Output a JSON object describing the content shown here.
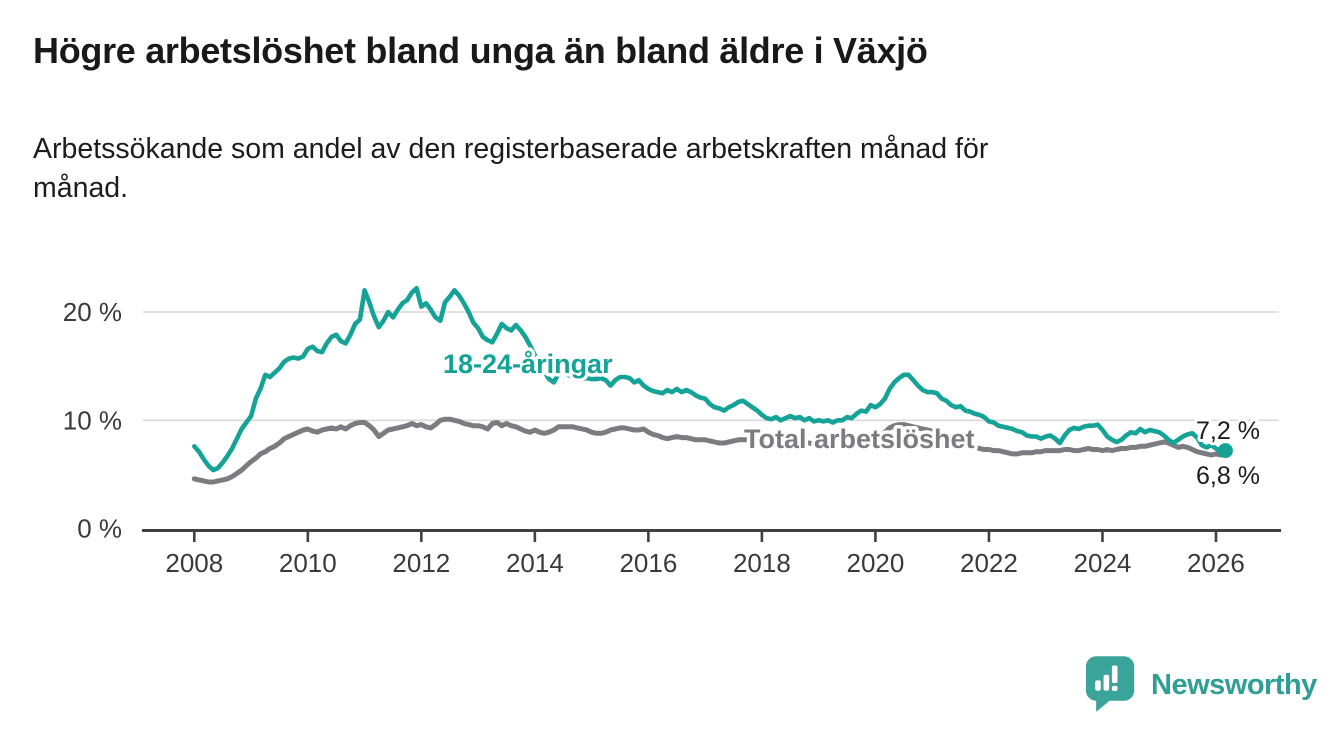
{
  "header": {
    "title": "Högre arbetslöshet bland unga än bland äldre i Växjö",
    "subtitle_lines": [
      "Arbetssökande som andel av den registerbaserade arbetskraften månad för",
      "månad."
    ]
  },
  "footer": {
    "brand": "Newsworthy",
    "logo_icon": "speech-bubble-bar-chart"
  },
  "colors": {
    "youth_line": "#14a396",
    "total_line": "#7c7b81",
    "axis": "#414141",
    "gridline": "#d9d9d9",
    "title_text": "#191919",
    "logo_teal": "#3aa49b"
  },
  "chart_data": {
    "type": "line",
    "title": "Högre arbetslöshet bland unga än bland äldre i Växjö",
    "subtitle": "Arbetssökande som andel av den registerbaserade arbetskraften månad för månad.",
    "unit": "%",
    "frequency": "monthly",
    "x_start": "2008-01",
    "x_end": "2026-03",
    "grid": "horizontal",
    "legend_position": "inline-labels",
    "ylim": [
      0,
      23.5
    ],
    "x_ticks": [
      "2008",
      "2010",
      "2012",
      "2014",
      "2016",
      "2018",
      "2020",
      "2022",
      "2024",
      "2026"
    ],
    "y_ticks": [
      {
        "value": 0,
        "label": "0 %"
      },
      {
        "value": 10,
        "label": "10 %"
      },
      {
        "value": 20,
        "label": "20 %"
      }
    ],
    "series": [
      {
        "name": "18-24-åringar",
        "color": "#14a396",
        "end_value": 7.2,
        "end_label": "7,2 %",
        "values": [
          7.6,
          7.1,
          6.4,
          5.8,
          5.4,
          5.6,
          6.1,
          6.7,
          7.4,
          8.3,
          9.2,
          9.8,
          10.4,
          12.0,
          12.9,
          14.2,
          14.0,
          14.4,
          14.8,
          15.4,
          15.7,
          15.8,
          15.7,
          15.9,
          16.6,
          16.8,
          16.4,
          16.3,
          17.1,
          17.7,
          17.9,
          17.3,
          17.1,
          17.9,
          18.9,
          19.3,
          22.0,
          20.9,
          19.6,
          18.6,
          19.2,
          20.0,
          19.5,
          20.2,
          20.8,
          21.1,
          21.8,
          22.2,
          20.5,
          20.8,
          20.2,
          19.5,
          19.2,
          20.9,
          21.4,
          22.0,
          21.5,
          20.8,
          20.0,
          19.0,
          18.5,
          17.7,
          17.4,
          17.2,
          18.0,
          18.9,
          18.5,
          18.3,
          18.8,
          18.3,
          17.7,
          16.9,
          16.0,
          15.2,
          14.5,
          13.8,
          13.5,
          14.3,
          14.4,
          14.2,
          14.0,
          13.9,
          13.8,
          13.9,
          13.8,
          13.8,
          13.9,
          13.7,
          13.2,
          13.7,
          14.0,
          14.0,
          13.9,
          13.5,
          13.7,
          13.2,
          12.9,
          12.7,
          12.6,
          12.5,
          12.8,
          12.6,
          12.9,
          12.6,
          12.8,
          12.6,
          12.3,
          12.1,
          12.0,
          11.5,
          11.2,
          11.1,
          10.9,
          11.2,
          11.4,
          11.7,
          11.8,
          11.5,
          11.2,
          10.9,
          10.5,
          10.2,
          10.1,
          10.3,
          10.0,
          10.2,
          10.4,
          10.2,
          10.3,
          10.0,
          10.2,
          9.9,
          10.0,
          9.9,
          10.0,
          9.8,
          10.0,
          10.0,
          10.3,
          10.2,
          10.6,
          10.9,
          10.8,
          11.4,
          11.2,
          11.5,
          12.0,
          12.9,
          13.5,
          13.9,
          14.2,
          14.2,
          13.7,
          13.2,
          12.8,
          12.6,
          12.6,
          12.5,
          12.0,
          11.8,
          11.4,
          11.2,
          11.3,
          10.9,
          10.8,
          10.6,
          10.5,
          10.3,
          9.9,
          9.8,
          9.5,
          9.4,
          9.3,
          9.2,
          9.0,
          8.9,
          8.6,
          8.5,
          8.5,
          8.3,
          8.5,
          8.6,
          8.3,
          7.9,
          8.6,
          9.1,
          9.3,
          9.2,
          9.4,
          9.5,
          9.5,
          9.6,
          9.1,
          8.5,
          8.2,
          8.0,
          8.2,
          8.6,
          8.9,
          8.8,
          9.2,
          8.9,
          9.1,
          9.0,
          8.9,
          8.6,
          8.2,
          7.9,
          8.2,
          8.5,
          8.7,
          8.8,
          8.4,
          7.7,
          7.5,
          7.7,
          7.4,
          7.1,
          7.2
        ]
      },
      {
        "name": "Total arbetslöshet",
        "color": "#7c7b81",
        "end_value": 6.8,
        "end_label": "6,8 %",
        "values": [
          4.6,
          4.5,
          4.4,
          4.3,
          4.3,
          4.4,
          4.5,
          4.6,
          4.8,
          5.1,
          5.4,
          5.8,
          6.2,
          6.5,
          6.9,
          7.1,
          7.4,
          7.6,
          7.9,
          8.3,
          8.5,
          8.7,
          8.9,
          9.1,
          9.2,
          9.0,
          8.9,
          9.1,
          9.2,
          9.3,
          9.2,
          9.4,
          9.2,
          9.5,
          9.7,
          9.8,
          9.8,
          9.5,
          9.1,
          8.5,
          8.8,
          9.1,
          9.2,
          9.3,
          9.4,
          9.5,
          9.7,
          9.5,
          9.6,
          9.4,
          9.3,
          9.6,
          10.0,
          10.1,
          10.1,
          10.0,
          9.9,
          9.7,
          9.6,
          9.5,
          9.5,
          9.4,
          9.2,
          9.7,
          9.8,
          9.5,
          9.7,
          9.5,
          9.4,
          9.2,
          9.0,
          8.9,
          9.1,
          8.9,
          8.8,
          8.9,
          9.1,
          9.4,
          9.4,
          9.4,
          9.4,
          9.3,
          9.2,
          9.1,
          8.9,
          8.8,
          8.8,
          8.9,
          9.1,
          9.2,
          9.3,
          9.3,
          9.2,
          9.1,
          9.1,
          9.2,
          8.9,
          8.7,
          8.6,
          8.4,
          8.3,
          8.4,
          8.5,
          8.4,
          8.4,
          8.3,
          8.2,
          8.2,
          8.2,
          8.1,
          8.0,
          7.9,
          7.9,
          8.0,
          8.1,
          8.2,
          8.2,
          8.2,
          8.1,
          8.1,
          8.2,
          8.3,
          8.4,
          8.3,
          8.2,
          8.2,
          8.1,
          8.0,
          8.0,
          7.9,
          7.9,
          7.8,
          7.8,
          7.7,
          7.7,
          7.6,
          7.6,
          7.7,
          7.8,
          7.9,
          8.0,
          8.0,
          8.1,
          8.2,
          8.4,
          8.6,
          8.9,
          9.3,
          9.5,
          9.6,
          9.6,
          9.5,
          9.4,
          9.3,
          9.2,
          9.1,
          9.0,
          8.9,
          8.7,
          8.5,
          8.3,
          8.1,
          7.9,
          7.8,
          7.6,
          7.5,
          7.4,
          7.3,
          7.3,
          7.2,
          7.2,
          7.1,
          7.0,
          6.9,
          6.9,
          7.0,
          7.0,
          7.0,
          7.1,
          7.1,
          7.2,
          7.2,
          7.2,
          7.2,
          7.3,
          7.3,
          7.2,
          7.2,
          7.3,
          7.4,
          7.3,
          7.3,
          7.2,
          7.3,
          7.2,
          7.3,
          7.4,
          7.4,
          7.5,
          7.5,
          7.6,
          7.6,
          7.7,
          7.8,
          7.9,
          8.0,
          7.9,
          7.7,
          7.5,
          7.6,
          7.5,
          7.3,
          7.1,
          7.0,
          6.9,
          6.8,
          6.9,
          6.8,
          6.8
        ]
      }
    ]
  }
}
